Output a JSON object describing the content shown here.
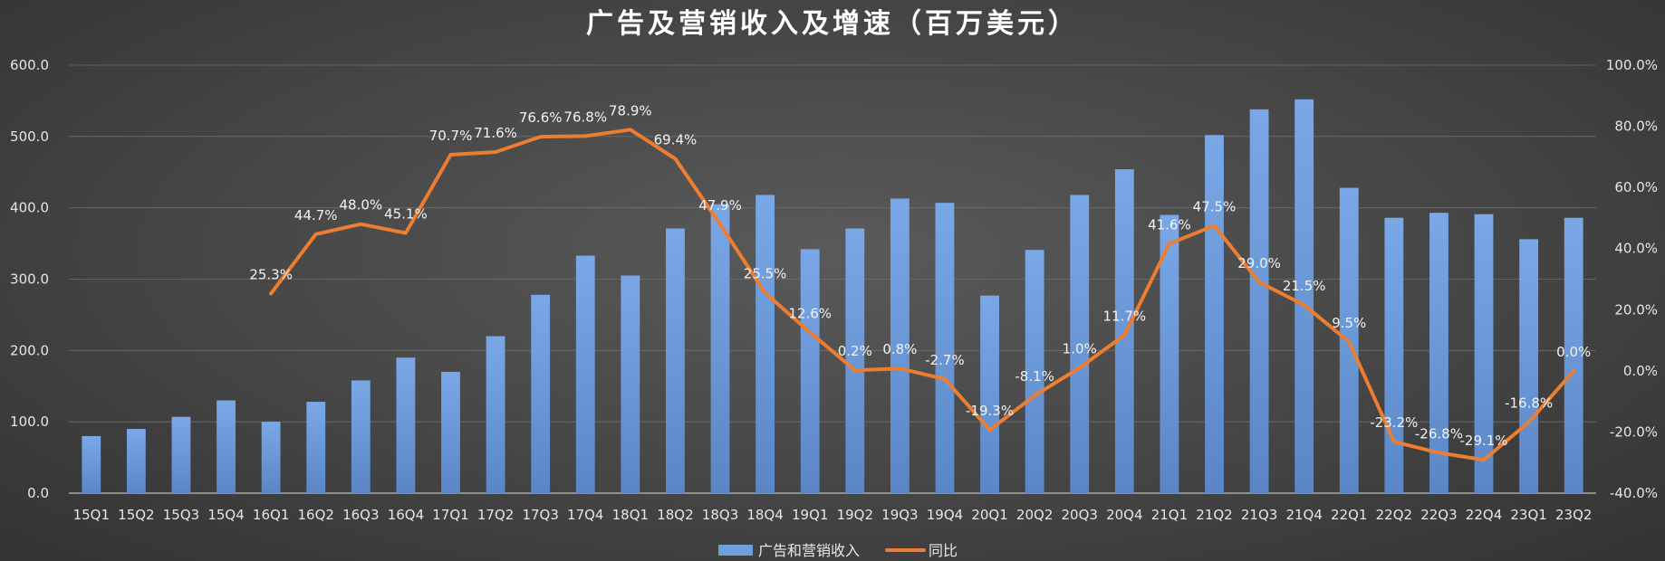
{
  "chart_data": {
    "type": "bar+line",
    "title": "广告及营销收入及增速（百万美元）",
    "categories": [
      "15Q1",
      "15Q2",
      "15Q3",
      "15Q4",
      "16Q1",
      "16Q2",
      "16Q3",
      "16Q4",
      "17Q1",
      "17Q2",
      "17Q3",
      "17Q4",
      "18Q1",
      "18Q2",
      "18Q3",
      "18Q4",
      "19Q1",
      "19Q2",
      "19Q3",
      "19Q4",
      "20Q1",
      "20Q2",
      "20Q3",
      "20Q4",
      "21Q1",
      "21Q2",
      "21Q3",
      "21Q4",
      "22Q1",
      "22Q2",
      "22Q3",
      "22Q4",
      "23Q1",
      "23Q2"
    ],
    "series": [
      {
        "name": "广告和营销收入",
        "type": "bar",
        "axis": "left",
        "color": "#6f9fdc",
        "values": [
          80,
          90,
          107,
          130,
          100,
          128,
          158,
          190,
          170,
          220,
          278,
          333,
          305,
          371,
          405,
          418,
          342,
          371,
          413,
          407,
          277,
          341,
          418,
          454,
          390,
          502,
          538,
          552,
          428,
          386,
          393,
          391,
          356,
          386
        ]
      },
      {
        "name": "同比",
        "type": "line",
        "axis": "right",
        "color": "#ed7d31",
        "values": [
          null,
          null,
          null,
          null,
          25.3,
          44.7,
          48.0,
          45.1,
          70.7,
          71.6,
          76.6,
          76.8,
          78.9,
          69.4,
          47.9,
          25.5,
          12.6,
          0.2,
          0.8,
          -2.7,
          -19.3,
          -8.1,
          1.0,
          11.7,
          41.6,
          47.5,
          29.0,
          21.5,
          9.5,
          -23.2,
          -26.8,
          -29.1,
          -16.8,
          0.0
        ],
        "labels": [
          "",
          "",
          "",
          "",
          "25.3%",
          "44.7%",
          "48.0%",
          "45.1%",
          "70.7%",
          "71.6%",
          "76.6%",
          "76.8%",
          "78.9%",
          "69.4%",
          "47.9%",
          "25.5%",
          "12.6%",
          "0.2%",
          "0.8%",
          "-2.7%",
          "-19.3%",
          "-8.1%",
          "1.0%",
          "11.7%",
          "41.6%",
          "47.5%",
          "29.0%",
          "21.5%",
          "9.5%",
          "-23.2%",
          "-26.8%",
          "-29.1%",
          "-16.8%",
          "0.0%"
        ]
      }
    ],
    "y_left": {
      "min": 0,
      "max": 600,
      "step": 100,
      "tick_labels": [
        "0.0",
        "100.0",
        "200.0",
        "300.0",
        "400.0",
        "500.0",
        "600.0"
      ]
    },
    "y_right": {
      "min": -40,
      "max": 100,
      "step": 20,
      "tick_labels": [
        "-40.0%",
        "-20.0%",
        "0.0%",
        "20.0%",
        "40.0%",
        "60.0%",
        "80.0%",
        "100.0%"
      ]
    },
    "grid": true,
    "legend": "bottom-center"
  }
}
